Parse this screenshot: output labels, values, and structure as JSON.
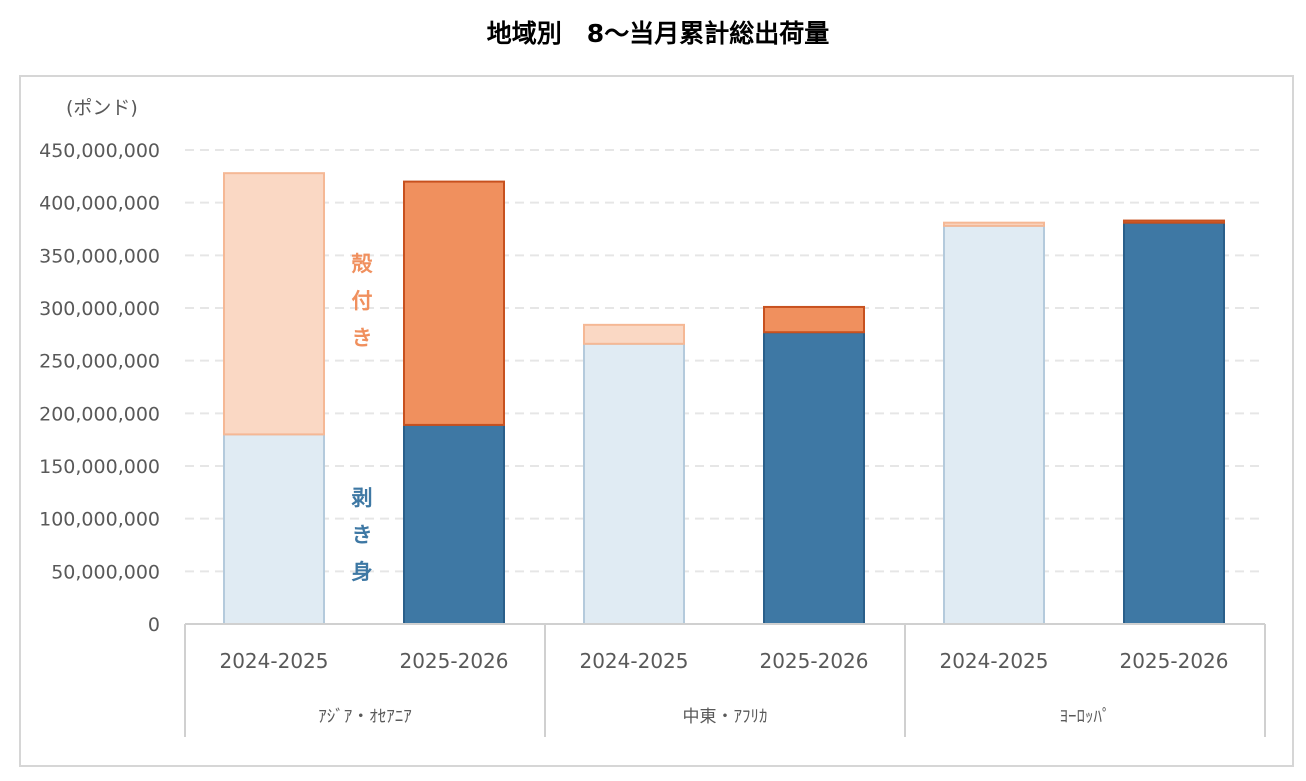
{
  "chart_data": {
    "type": "bar",
    "stacked": true,
    "title": "地域別　8～当月累計総出荷量",
    "unit_label": "(ポンド)",
    "ylim": [
      0,
      450000000
    ],
    "y_ticks": [
      "0",
      "50,000,000",
      "100,000,000",
      "150,000,000",
      "200,000,000",
      "250,000,000",
      "300,000,000",
      "350,000,000",
      "400,000,000",
      "450,000,000"
    ],
    "y_tick_values": [
      0,
      50000000,
      100000000,
      150000000,
      200000000,
      250000000,
      300000000,
      350000000,
      400000000,
      450000000
    ],
    "grid": true,
    "groups": [
      {
        "label": "ｱｼﾞｱ・ｵｾｱﾆｱ",
        "categories": [
          "2024-2025",
          "2025-2026"
        ]
      },
      {
        "label": "中東・ｱﾌﾘｶ",
        "categories": [
          "2024-2025",
          "2025-2026"
        ]
      },
      {
        "label": "ﾖｰﾛｯﾊﾟ",
        "categories": [
          "2024-2025",
          "2025-2026"
        ]
      }
    ],
    "series": [
      {
        "name": "剥き身",
        "values": [
          180000000,
          189000000,
          266000000,
          277000000,
          378000000,
          381000000
        ]
      },
      {
        "name": "殻付き",
        "values": [
          248000000,
          231000000,
          18000000,
          24000000,
          3000000,
          2000000
        ]
      }
    ],
    "series_label_chars": [
      [
        "剥",
        "き",
        "身"
      ],
      [
        "殻",
        "付",
        "き"
      ]
    ],
    "colors": {
      "shelled_prev_fill": "#e0ebf3",
      "shelled_prev_stroke": "#b4cadc",
      "shelled_curr_fill": "#3e78a4",
      "shelled_curr_stroke": "#2a5f8a",
      "inshell_prev_fill": "#fad8c4",
      "inshell_prev_stroke": "#f5b895",
      "inshell_curr_fill": "#f0905e",
      "inshell_curr_stroke": "#c7511f",
      "label_shelled": "#3e78a4",
      "label_inshell": "#f0905e",
      "gridline": "#e6e6e6",
      "axis": "#d0d0d0",
      "frame": "#d6d6d6",
      "text": "#595959",
      "title": "#000000"
    }
  }
}
